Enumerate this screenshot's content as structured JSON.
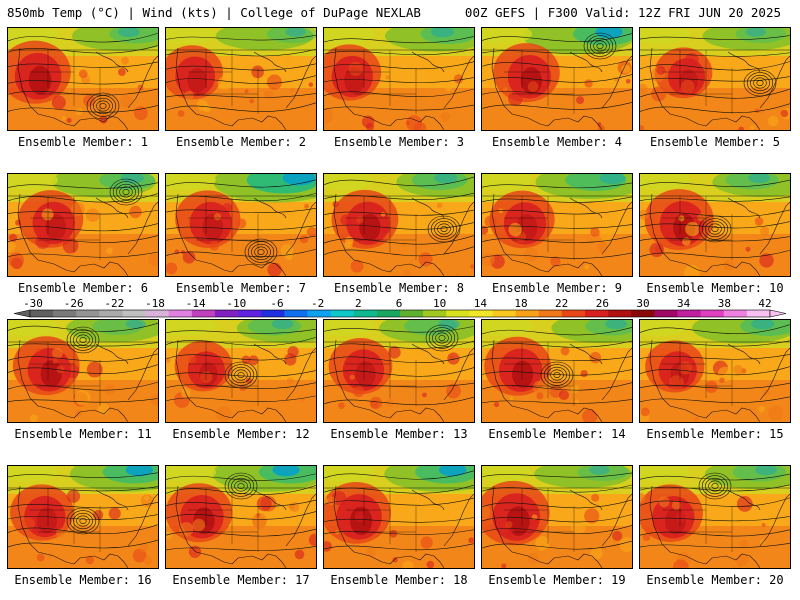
{
  "header": {
    "left_title": "850mb Temp (°C) | Wind (kts) | College of DuPage NEXLAB",
    "right_title": "00Z GEFS | F300 Valid: 12Z FRI JUN 20 2025"
  },
  "members": [
    {
      "label": "Ensemble Member: 1",
      "warmth": 0.78,
      "cold_north": 0.35,
      "low_center": "south-east"
    },
    {
      "label": "Ensemble Member: 2",
      "warmth": 0.65,
      "cold_north": 0.3,
      "low_center": "none"
    },
    {
      "label": "Ensemble Member: 3",
      "warmth": 0.68,
      "cold_north": 0.4,
      "low_center": "none"
    },
    {
      "label": "Ensemble Member: 4",
      "warmth": 0.72,
      "cold_north": 0.55,
      "low_center": "north-east"
    },
    {
      "label": "Ensemble Member: 5",
      "warmth": 0.6,
      "cold_north": 0.3,
      "low_center": "east"
    },
    {
      "label": "Ensemble Member: 6",
      "warmth": 0.7,
      "cold_north": 0.4,
      "low_center": "north-east"
    },
    {
      "label": "Ensemble Member: 7",
      "warmth": 0.7,
      "cold_north": 0.75,
      "low_center": "south-east"
    },
    {
      "label": "Ensemble Member: 8",
      "warmth": 0.72,
      "cold_north": 0.4,
      "low_center": "east"
    },
    {
      "label": "Ensemble Member: 9",
      "warmth": 0.7,
      "cold_north": 0.5,
      "low_center": "none"
    },
    {
      "label": "Ensemble Member: 10",
      "warmth": 0.75,
      "cold_north": 0.35,
      "low_center": "center"
    },
    {
      "label": "Ensemble Member: 11",
      "warmth": 0.72,
      "cold_north": 0.3,
      "low_center": "north"
    },
    {
      "label": "Ensemble Member: 12",
      "warmth": 0.6,
      "cold_north": 0.35,
      "low_center": "center"
    },
    {
      "label": "Ensemble Member: 13",
      "warmth": 0.68,
      "cold_north": 0.35,
      "low_center": "north-east"
    },
    {
      "label": "Ensemble Member: 14",
      "warmth": 0.72,
      "cold_north": 0.35,
      "low_center": "center"
    },
    {
      "label": "Ensemble Member: 15",
      "warmth": 0.62,
      "cold_north": 0.4,
      "low_center": "none"
    },
    {
      "label": "Ensemble Member: 16",
      "warmth": 0.68,
      "cold_north": 0.55,
      "low_center": "center"
    },
    {
      "label": "Ensemble Member: 17",
      "warmth": 0.72,
      "cold_north": 0.55,
      "low_center": "north"
    },
    {
      "label": "Ensemble Member: 18",
      "warmth": 0.76,
      "cold_north": 0.55,
      "low_center": "none"
    },
    {
      "label": "Ensemble Member: 19",
      "warmth": 0.8,
      "cold_north": 0.3,
      "low_center": "none"
    },
    {
      "label": "Ensemble Member: 20",
      "warmth": 0.7,
      "cold_north": 0.35,
      "low_center": "north"
    }
  ],
  "colorbar": {
    "units": "°C",
    "labels": [
      "-30",
      "-26",
      "-22",
      "-18",
      "-14",
      "-10",
      "-6",
      "-2",
      "2",
      "6",
      "10",
      "14",
      "18",
      "22",
      "26",
      "30",
      "34",
      "38",
      "42"
    ],
    "colors": [
      "#606060",
      "#7a7a7a",
      "#949494",
      "#aaaaaa",
      "#c0c0c0",
      "#d9b3d9",
      "#e080e0",
      "#c040c0",
      "#8020c0",
      "#6020e0",
      "#2030e0",
      "#1070f0",
      "#10a0f0",
      "#10c8c8",
      "#10b890",
      "#18a860",
      "#60b030",
      "#a0c820",
      "#d8e020",
      "#f0e828",
      "#f8c820",
      "#f8a018",
      "#f07818",
      "#e84818",
      "#d82020",
      "#b01010",
      "#880808",
      "#a00868",
      "#c020a0",
      "#e040c0",
      "#f080e0",
      "#f8c0f0"
    ],
    "field_palette": [
      "#08a0c8",
      "#10b890",
      "#30a848",
      "#88c028",
      "#d0d820",
      "#f0d020",
      "#f8a818",
      "#f07818",
      "#e84818",
      "#d82020",
      "#b01010"
    ]
  }
}
